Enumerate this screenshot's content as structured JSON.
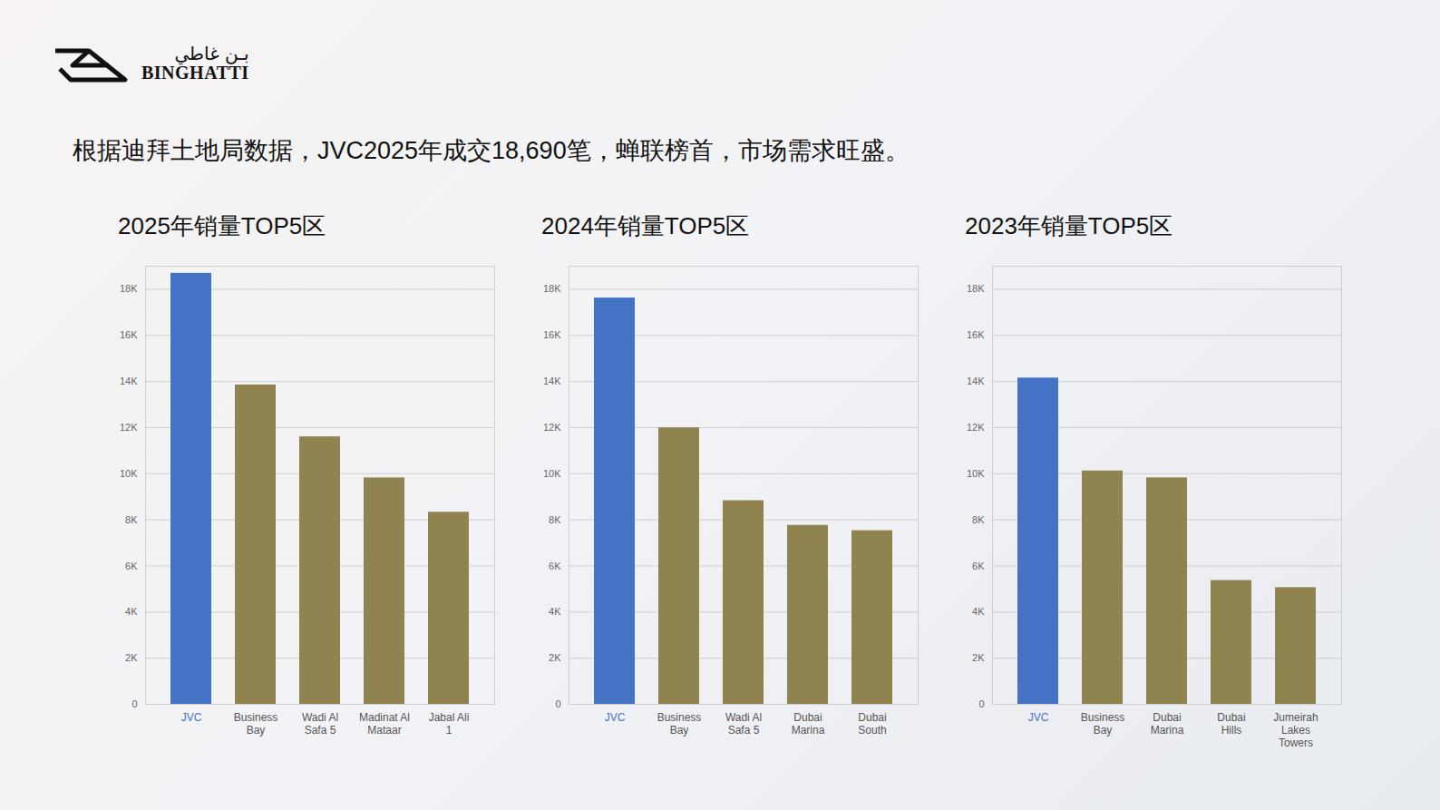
{
  "header": {
    "logo_arabic": "بـن غاطي",
    "logo_latin": "BINGHATTI"
  },
  "headline": "根据迪拜土地局数据，JVC2025年成交18,690笔，蝉联榜首，市场需求旺盛。",
  "chart_data": [
    {
      "type": "bar",
      "title": "2025年销量TOP5区",
      "categories": [
        "JVC",
        "Business Bay",
        "Wadi Al Safa 5",
        "Madinat Al Mataar",
        "Jabal Ali 1"
      ],
      "values": [
        18690,
        13850,
        11600,
        9820,
        8330
      ],
      "colors": [
        "#4472c4",
        "#8f8350",
        "#8f8350",
        "#8f8350",
        "#8f8350"
      ],
      "ylim": [
        0,
        19000
      ],
      "yticks": [
        0,
        {
          "value": 2000,
          "label": "2K"
        },
        {
          "value": 4000,
          "label": "4K"
        },
        {
          "value": 6000,
          "label": "6K"
        },
        {
          "value": 8000,
          "label": "8K"
        },
        {
          "value": 10000,
          "label": "10K"
        },
        {
          "value": 12000,
          "label": "12K"
        },
        {
          "value": 14000,
          "label": "14K"
        },
        {
          "value": 16000,
          "label": "16K"
        },
        {
          "value": 18000,
          "label": "18K"
        }
      ],
      "grid": true
    },
    {
      "type": "bar",
      "title": "2024年销量TOP5区",
      "categories": [
        "JVC",
        "Business Bay",
        "Wadi Al Safa 5",
        "Dubai Marina",
        "Dubai South"
      ],
      "values": [
        17620,
        11990,
        8830,
        7760,
        7530
      ],
      "colors": [
        "#4472c4",
        "#8f8350",
        "#8f8350",
        "#8f8350",
        "#8f8350"
      ],
      "ylim": [
        0,
        19000
      ],
      "yticks": [
        0,
        {
          "value": 2000,
          "label": "2K"
        },
        {
          "value": 4000,
          "label": "4K"
        },
        {
          "value": 6000,
          "label": "6K"
        },
        {
          "value": 8000,
          "label": "8K"
        },
        {
          "value": 10000,
          "label": "10K"
        },
        {
          "value": 12000,
          "label": "12K"
        },
        {
          "value": 14000,
          "label": "14K"
        },
        {
          "value": 16000,
          "label": "16K"
        },
        {
          "value": 18000,
          "label": "18K"
        }
      ],
      "grid": true
    },
    {
      "type": "bar",
      "title": "2023年销量TOP5区",
      "categories": [
        "JVC",
        "Business Bay",
        "Dubai Marina",
        "Dubai Hills",
        "Jumeirah Lakes Towers"
      ],
      "values": [
        14150,
        10120,
        9820,
        5370,
        5060
      ],
      "colors": [
        "#4472c4",
        "#8f8350",
        "#8f8350",
        "#8f8350",
        "#8f8350"
      ],
      "ylim": [
        0,
        19000
      ],
      "yticks": [
        0,
        {
          "value": 2000,
          "label": "2K"
        },
        {
          "value": 4000,
          "label": "4K"
        },
        {
          "value": 6000,
          "label": "6K"
        },
        {
          "value": 8000,
          "label": "8K"
        },
        {
          "value": 10000,
          "label": "10K"
        },
        {
          "value": 12000,
          "label": "12K"
        },
        {
          "value": 14000,
          "label": "14K"
        },
        {
          "value": 16000,
          "label": "16K"
        },
        {
          "value": 18000,
          "label": "18K"
        }
      ],
      "grid": true
    }
  ]
}
